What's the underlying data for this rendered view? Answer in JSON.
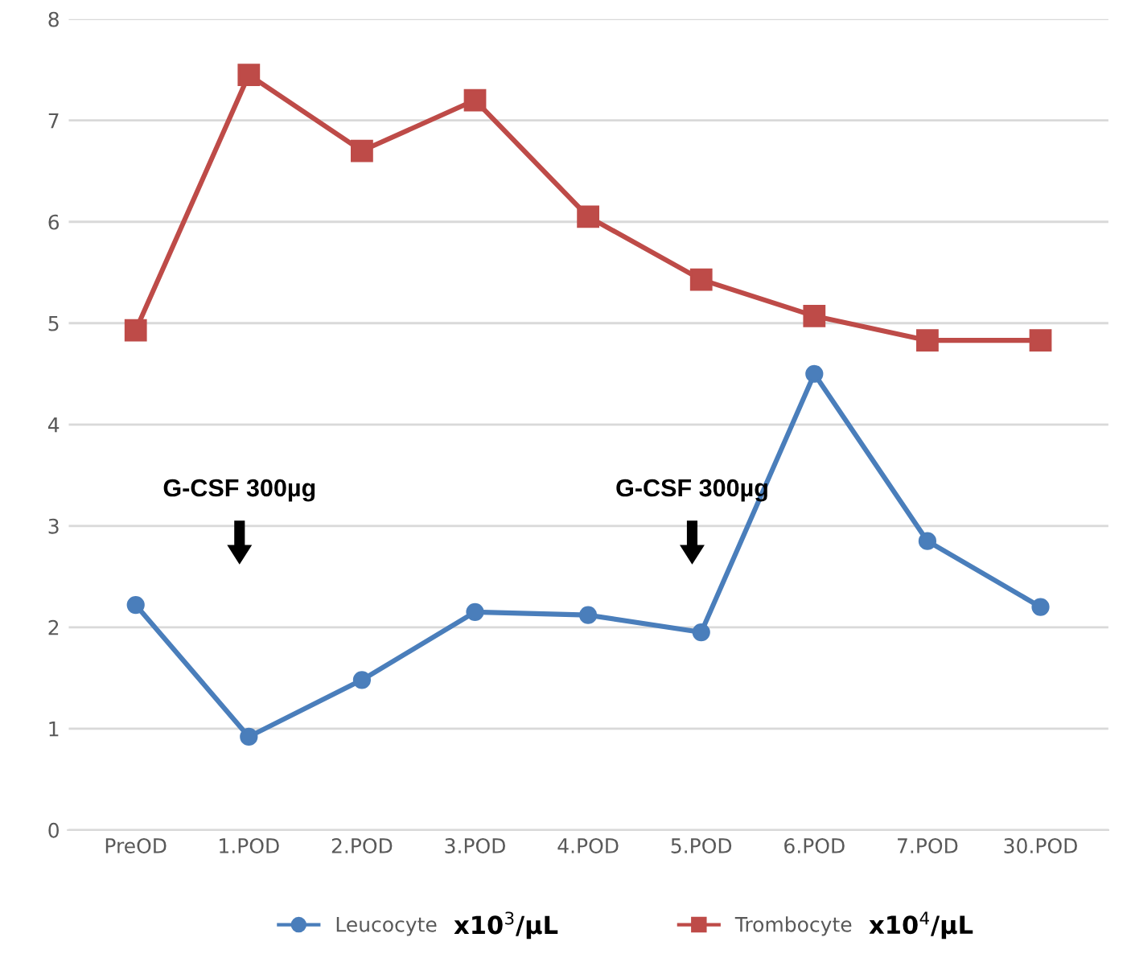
{
  "chart_data": {
    "type": "line",
    "categories": [
      "PreOD",
      "1.POD",
      "2.POD",
      "3.POD",
      "4.POD",
      "5.POD",
      "6.POD",
      "7.POD",
      "30.POD"
    ],
    "series": [
      {
        "name": "Leucocyte",
        "color": "#4a7ebb",
        "marker": "circle",
        "values": [
          2.22,
          0.92,
          1.48,
          2.15,
          2.12,
          1.95,
          4.5,
          2.85,
          2.2
        ]
      },
      {
        "name": "Trombocyte",
        "color": "#be4b48",
        "marker": "square",
        "values": [
          4.93,
          7.45,
          6.7,
          7.2,
          6.05,
          5.43,
          5.07,
          4.83,
          4.83
        ]
      }
    ],
    "ylim": [
      0,
      8
    ],
    "yticks": [
      0,
      1,
      2,
      3,
      4,
      5,
      6,
      7,
      8
    ],
    "grid": "y",
    "legend": "bottom",
    "line_style": "solid",
    "annotations": [
      "G-CSF 300µg",
      "G-CSF 300µg",
      "x10$^{3}$/µL",
      "x10$^{4}$/µL"
    ]
  }
}
